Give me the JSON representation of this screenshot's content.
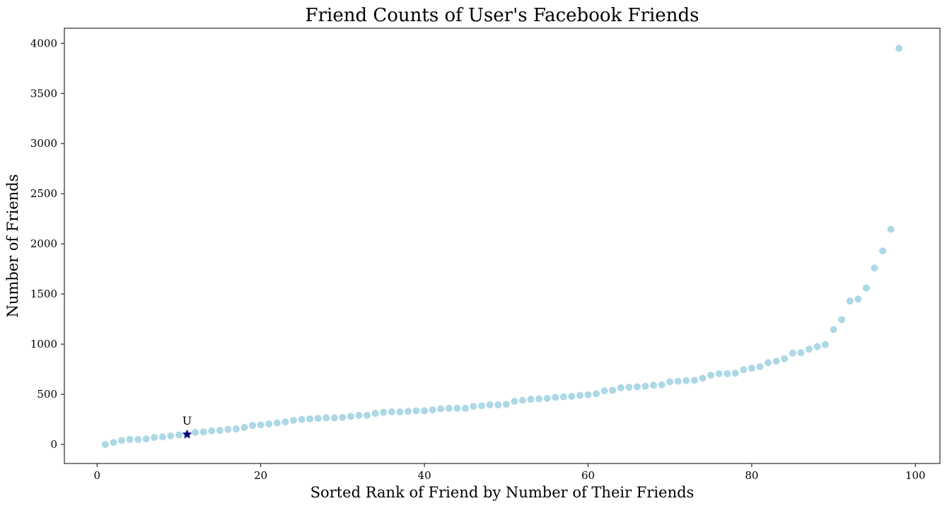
{
  "chart_data": {
    "type": "scatter",
    "title": "Friend Counts of User's Facebook Friends",
    "xlabel": "Sorted Rank of Friend by Number of Their Friends",
    "ylabel": "Number of Friends",
    "xlim": [
      -4,
      103
    ],
    "ylim": [
      -190,
      4150
    ],
    "x_ticks": [
      0,
      20,
      40,
      60,
      80,
      100
    ],
    "y_ticks": [
      0,
      500,
      1000,
      1500,
      2000,
      2500,
      3000,
      3500,
      4000
    ],
    "grid": false,
    "point_color": "#add8e6",
    "highlight_color": "#000080",
    "series": [
      {
        "x": [
          1,
          2,
          3,
          4,
          5,
          6,
          7,
          8,
          9,
          10,
          11,
          12,
          13,
          14,
          15,
          16,
          17,
          18,
          19,
          20,
          21,
          22,
          23,
          24,
          25,
          26,
          27,
          28,
          29,
          30,
          31,
          32,
          33,
          34,
          35,
          36,
          37,
          38,
          39,
          40,
          41,
          42,
          43,
          44,
          45,
          46,
          47,
          48,
          49,
          50,
          51,
          52,
          53,
          54,
          55,
          56,
          57,
          58,
          59,
          60,
          61,
          62,
          63,
          64,
          65,
          66,
          67,
          68,
          69,
          70,
          71,
          72,
          73,
          74,
          75,
          76,
          77,
          78,
          79,
          80,
          81,
          82,
          83,
          84,
          85,
          86,
          87,
          88,
          89,
          90,
          91,
          92,
          93,
          94,
          95,
          96,
          97,
          98
        ],
        "y": [
          0,
          20,
          40,
          50,
          50,
          55,
          70,
          75,
          85,
          95,
          100,
          120,
          125,
          135,
          140,
          150,
          155,
          170,
          190,
          195,
          205,
          215,
          225,
          240,
          250,
          255,
          260,
          265,
          265,
          270,
          280,
          290,
          290,
          310,
          320,
          325,
          325,
          330,
          335,
          335,
          345,
          355,
          360,
          360,
          360,
          380,
          385,
          395,
          395,
          400,
          430,
          440,
          450,
          455,
          460,
          470,
          475,
          480,
          490,
          495,
          505,
          535,
          540,
          565,
          570,
          575,
          580,
          590,
          595,
          625,
          630,
          635,
          640,
          660,
          690,
          705,
          705,
          710,
          745,
          760,
          775,
          815,
          830,
          855,
          910,
          915,
          950,
          975,
          995,
          1145,
          1245,
          1430,
          1450,
          1560,
          1760,
          1930,
          2145,
          3950
        ]
      }
    ],
    "highlight": {
      "x": 11,
      "y": 100,
      "label": "U",
      "marker": "star"
    }
  }
}
